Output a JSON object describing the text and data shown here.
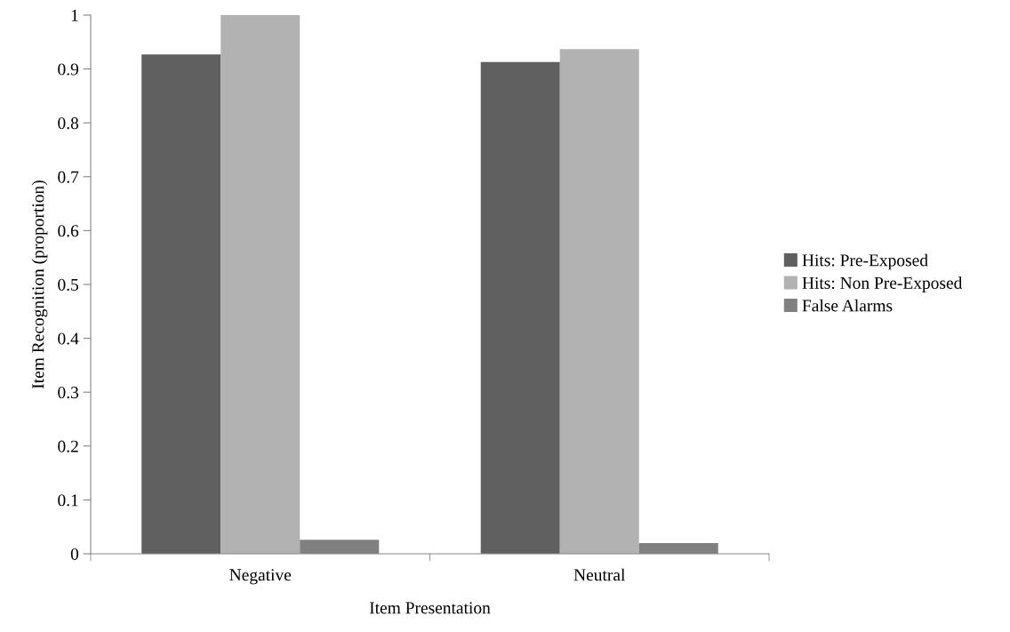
{
  "chart_data": {
    "type": "bar",
    "xlabel": "Item Presentation",
    "ylabel": "Item Recognition (proportion)",
    "categories": [
      "Negative",
      "Neutral"
    ],
    "series": [
      {
        "name": "Hits: Pre-Exposed",
        "color": "#606060",
        "values": [
          0.927,
          0.913
        ]
      },
      {
        "name": "Hits: Non Pre-Exposed",
        "color": "#b2b2b2",
        "values": [
          1.0,
          0.937
        ]
      },
      {
        "name": "False Alarms",
        "color": "#808080",
        "values": [
          0.026,
          0.02
        ]
      }
    ],
    "ylim": [
      0,
      1
    ],
    "yticks": [
      0,
      {
        "value": 0.1,
        "label": "0.1"
      },
      0.2,
      0.3,
      0.4,
      0.5,
      0.6,
      0.7,
      0.8,
      0.9,
      1
    ],
    "grid": false,
    "legend": "right"
  }
}
